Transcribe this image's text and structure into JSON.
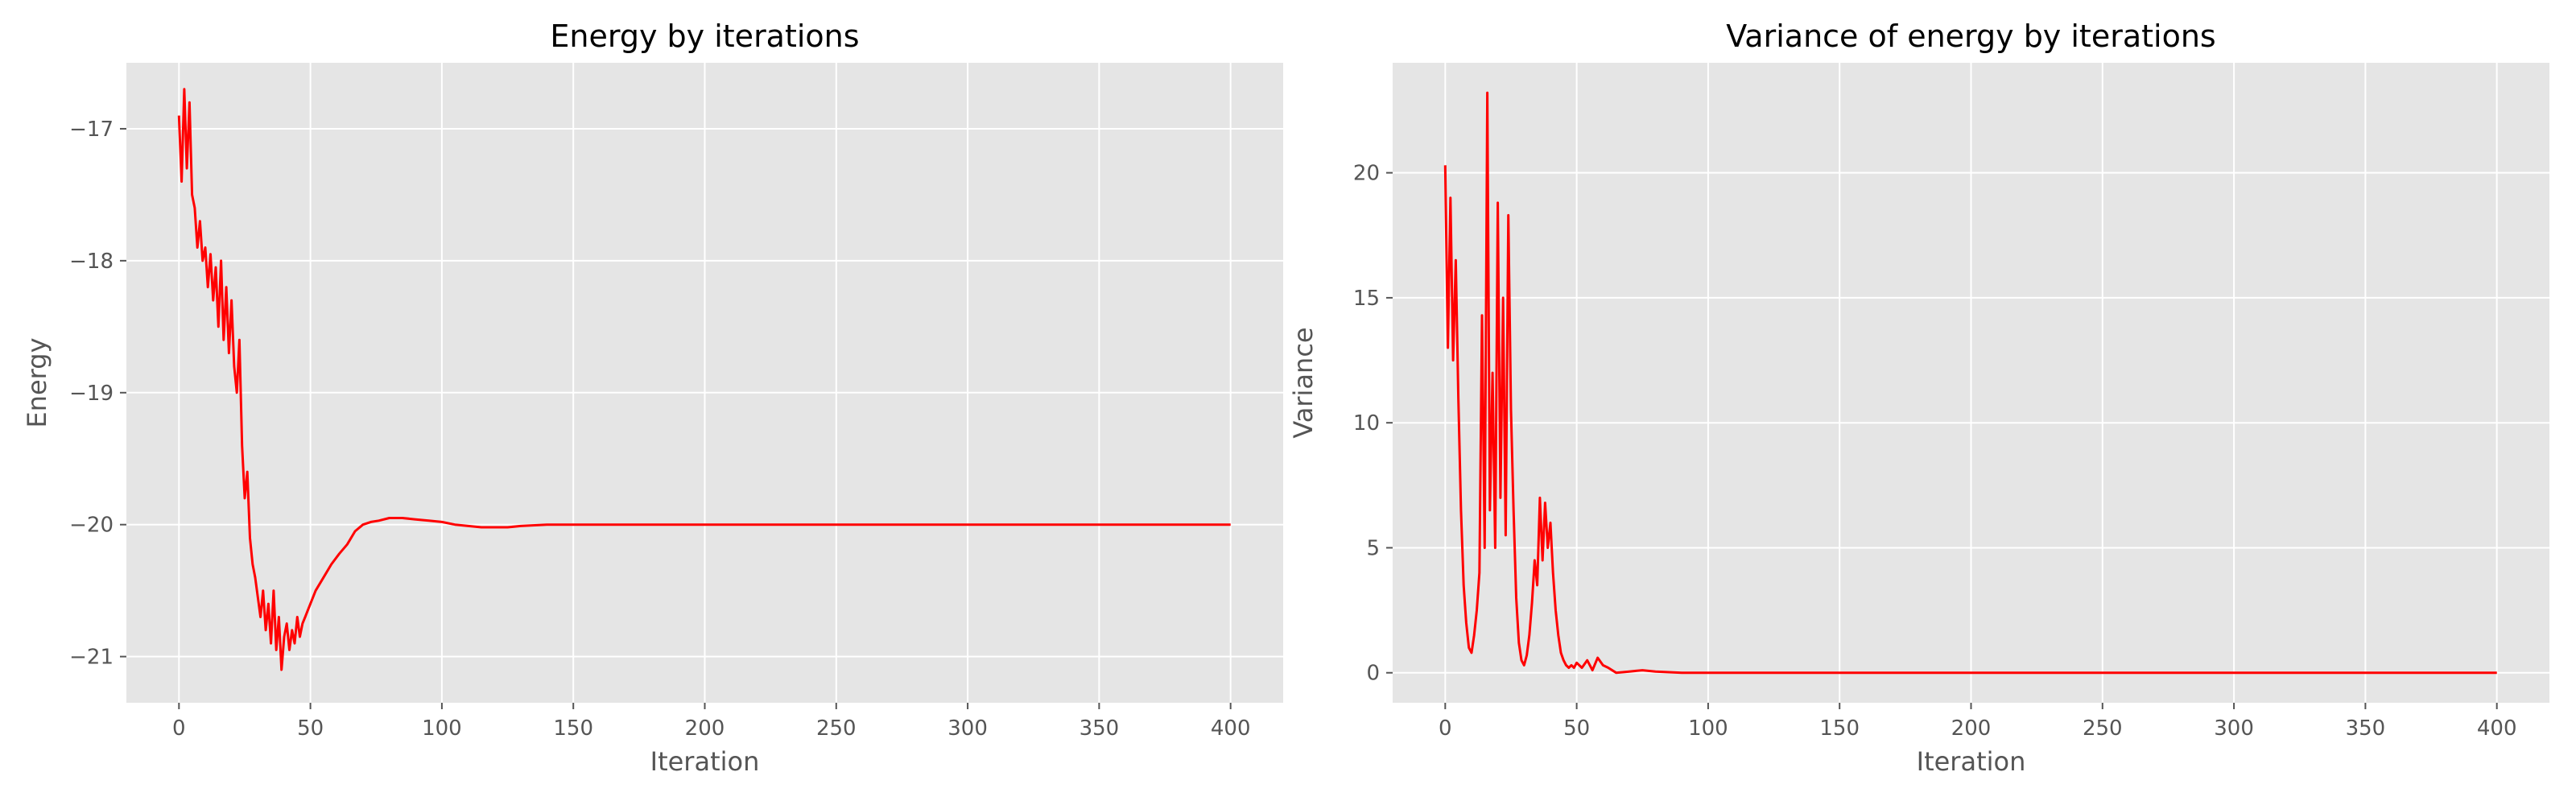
{
  "chart_data": [
    {
      "type": "line",
      "title": "Energy by iterations",
      "xlabel": "Iteration",
      "ylabel": "Energy",
      "xlim": [
        -20,
        420
      ],
      "ylim": [
        -21.35,
        -16.5
      ],
      "xticks": [
        0,
        50,
        100,
        150,
        200,
        250,
        300,
        350,
        400
      ],
      "yticks": [
        -21,
        -20,
        -19,
        -18,
        -17
      ],
      "ytick_labels": [
        "−21",
        "−20",
        "−19",
        "−18",
        "−17"
      ],
      "grid": true,
      "series": [
        {
          "color": "#ff0000",
          "x": [
            0,
            1,
            2,
            3,
            4,
            5,
            6,
            7,
            8,
            9,
            10,
            11,
            12,
            13,
            14,
            15,
            16,
            17,
            18,
            19,
            20,
            21,
            22,
            23,
            24,
            25,
            26,
            27,
            28,
            29,
            30,
            31,
            32,
            33,
            34,
            35,
            36,
            37,
            38,
            39,
            40,
            41,
            42,
            43,
            44,
            45,
            46,
            47,
            48,
            49,
            50,
            52,
            55,
            58,
            61,
            64,
            67,
            70,
            73,
            76,
            80,
            85,
            90,
            95,
            100,
            105,
            110,
            115,
            120,
            125,
            130,
            140,
            150,
            160,
            170,
            180,
            200,
            250,
            300,
            350,
            400
          ],
          "y": [
            -16.9,
            -17.4,
            -16.7,
            -17.3,
            -16.8,
            -17.5,
            -17.6,
            -17.9,
            -17.7,
            -18.0,
            -17.9,
            -18.2,
            -17.95,
            -18.3,
            -18.05,
            -18.5,
            -18.0,
            -18.6,
            -18.2,
            -18.7,
            -18.3,
            -18.8,
            -19.0,
            -18.6,
            -19.4,
            -19.8,
            -19.6,
            -20.1,
            -20.3,
            -20.4,
            -20.55,
            -20.7,
            -20.5,
            -20.8,
            -20.6,
            -20.9,
            -20.5,
            -20.95,
            -20.7,
            -21.1,
            -20.85,
            -20.75,
            -20.95,
            -20.8,
            -20.9,
            -20.7,
            -20.85,
            -20.75,
            -20.7,
            -20.65,
            -20.6,
            -20.5,
            -20.4,
            -20.3,
            -20.22,
            -20.15,
            -20.05,
            -20.0,
            -19.98,
            -19.97,
            -19.95,
            -19.95,
            -19.96,
            -19.97,
            -19.98,
            -20.0,
            -20.01,
            -20.02,
            -20.02,
            -20.02,
            -20.01,
            -20.0,
            -20.0,
            -20.0,
            -20.0,
            -20.0,
            -20.0,
            -20.0,
            -20.0,
            -20.0,
            -20.0
          ]
        }
      ]
    },
    {
      "type": "line",
      "title": "Variance of energy by iterations",
      "xlabel": "Iteration",
      "ylabel": "Variance",
      "xlim": [
        -20,
        420
      ],
      "ylim": [
        -1.2,
        24.4
      ],
      "xticks": [
        0,
        50,
        100,
        150,
        200,
        250,
        300,
        350,
        400
      ],
      "yticks": [
        0,
        5,
        10,
        15,
        20
      ],
      "ytick_labels": [
        "0",
        "5",
        "10",
        "15",
        "20"
      ],
      "grid": true,
      "series": [
        {
          "color": "#ff0000",
          "x": [
            0,
            1,
            2,
            3,
            4,
            5,
            6,
            7,
            8,
            9,
            10,
            11,
            12,
            13,
            14,
            15,
            16,
            17,
            18,
            19,
            20,
            21,
            22,
            23,
            24,
            25,
            26,
            27,
            28,
            29,
            30,
            31,
            32,
            33,
            34,
            35,
            36,
            37,
            38,
            39,
            40,
            41,
            42,
            43,
            44,
            45,
            46,
            47,
            48,
            49,
            50,
            52,
            54,
            56,
            58,
            60,
            62,
            65,
            70,
            75,
            80,
            90,
            100,
            150,
            200,
            250,
            300,
            350,
            400
          ],
          "y": [
            20.3,
            13.0,
            19.0,
            12.5,
            16.5,
            11.0,
            6.5,
            3.5,
            2.0,
            1.0,
            0.8,
            1.5,
            2.5,
            4.0,
            14.3,
            5.0,
            23.2,
            6.5,
            12.0,
            5.0,
            18.8,
            7.0,
            15.0,
            5.5,
            18.3,
            10.5,
            6.5,
            3.0,
            1.2,
            0.5,
            0.3,
            0.7,
            1.5,
            2.8,
            4.5,
            3.5,
            7.0,
            4.5,
            6.8,
            5.0,
            6.0,
            4.0,
            2.5,
            1.5,
            0.8,
            0.5,
            0.3,
            0.2,
            0.3,
            0.2,
            0.4,
            0.2,
            0.5,
            0.1,
            0.6,
            0.3,
            0.2,
            0.0,
            0.05,
            0.1,
            0.05,
            0.0,
            0.0,
            0.0,
            0.0,
            0.0,
            0.0,
            0.0,
            0.0
          ]
        }
      ]
    }
  ]
}
